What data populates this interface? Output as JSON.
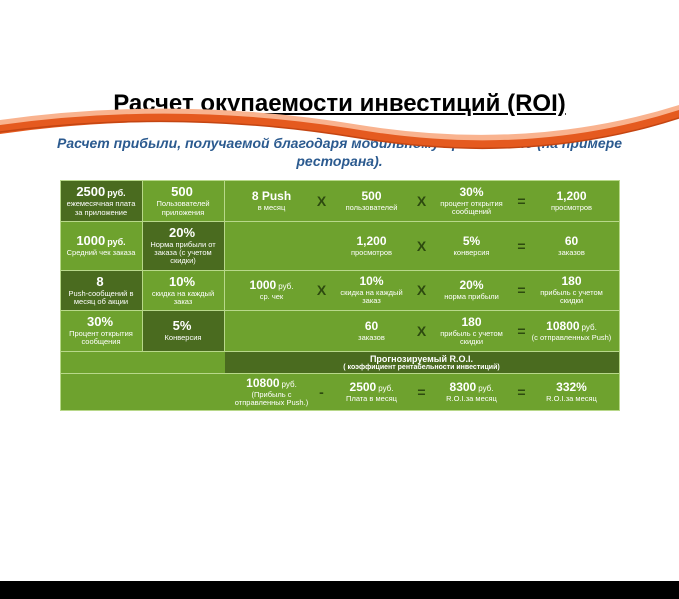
{
  "colors": {
    "swoosh_primary": "#e55a1f",
    "swoosh_light": "#f9b38f",
    "title_color": "#000000",
    "subtitle_color": "#2b5a8f",
    "table_bg": "#6ea22e",
    "table_dark": "#4a6b1f",
    "table_darker": "#3d5a18",
    "table_border": "#b8d88a",
    "op_color": "#2d4a0f"
  },
  "title": "Расчет окупаемости инвестиций (ROI)",
  "subtitle": "Расчет прибыли, получаемой благодаря мобильному приложению (на примере ресторана).",
  "left_cols": [
    [
      {
        "val": "2500",
        "unit": "руб.",
        "desc": "ежемесячная плата за приложение"
      },
      {
        "val": "500",
        "unit": "",
        "desc": "Пользователей приложения"
      }
    ],
    [
      {
        "val": "1000",
        "unit": "руб.",
        "desc": "Средний чек заказа"
      },
      {
        "val": "20%",
        "unit": "",
        "desc": "Норма прибыли от заказа (с учетом скидки)"
      }
    ],
    [
      {
        "val": "8",
        "unit": "",
        "desc": "Push-сообщений в месяц об акции"
      },
      {
        "val": "10%",
        "unit": "",
        "desc": "скидка на каждый заказ"
      }
    ],
    [
      {
        "val": "30%",
        "unit": "",
        "desc": "Процент открытия сообщения"
      },
      {
        "val": "5%",
        "unit": "",
        "desc": "Конверсия"
      }
    ]
  ],
  "calc_rows": [
    [
      {
        "t": "c",
        "v": "8 Push",
        "d": "в месяц"
      },
      {
        "t": "op",
        "s": "X"
      },
      {
        "t": "c",
        "v": "500",
        "d": "пользователей"
      },
      {
        "t": "op",
        "s": "X"
      },
      {
        "t": "c",
        "v": "30%",
        "d": "процент открытия сообщений"
      },
      {
        "t": "op",
        "s": "="
      },
      {
        "t": "c",
        "v": "1,200",
        "d": "просмотров"
      }
    ],
    [
      {
        "t": "c",
        "v": "",
        "d": ""
      },
      {
        "t": "op",
        "s": ""
      },
      {
        "t": "c",
        "v": "1,200",
        "d": "просмотров"
      },
      {
        "t": "op",
        "s": "X"
      },
      {
        "t": "c",
        "v": "5%",
        "d": "конверсия"
      },
      {
        "t": "op",
        "s": "="
      },
      {
        "t": "c",
        "v": "60",
        "d": "заказов"
      }
    ],
    [
      {
        "t": "c",
        "v": "1000",
        "u": "руб.",
        "d": "ср. чек"
      },
      {
        "t": "op",
        "s": "X"
      },
      {
        "t": "c",
        "v": "10%",
        "d": "скидка на каждый заказ"
      },
      {
        "t": "op",
        "s": "X"
      },
      {
        "t": "c",
        "v": "20%",
        "d": "норма прибыли"
      },
      {
        "t": "op",
        "s": "="
      },
      {
        "t": "c",
        "v": "180",
        "d": "прибыль с учетом скидки"
      }
    ],
    [
      {
        "t": "c",
        "v": "",
        "d": ""
      },
      {
        "t": "op",
        "s": ""
      },
      {
        "t": "c",
        "v": "60",
        "d": "заказов"
      },
      {
        "t": "op",
        "s": "X"
      },
      {
        "t": "c",
        "v": "180",
        "d": "прибыль с учетом скидки"
      },
      {
        "t": "op",
        "s": "="
      },
      {
        "t": "c",
        "v": "10800",
        "u": "руб.",
        "d": "(с отправленных Push)"
      }
    ]
  ],
  "forecast_label": {
    "main": "Прогнозируемый R.O.I.",
    "sub": "( коэффициент рентабельности инвестиций)"
  },
  "forecast_row": [
    {
      "t": "c",
      "v": "10800",
      "u": "руб.",
      "d": "(Прибыль с отправленных Push.)"
    },
    {
      "t": "op",
      "s": "-"
    },
    {
      "t": "c",
      "v": "2500",
      "u": "руб.",
      "d": "Плата в месяц"
    },
    {
      "t": "op",
      "s": "="
    },
    {
      "t": "c",
      "v": "8300",
      "u": "руб.",
      "d": "R.O.I.за месяц"
    },
    {
      "t": "op",
      "s": "="
    },
    {
      "t": "c",
      "v": "332%",
      "d": "R.O.I.за месяц"
    }
  ]
}
